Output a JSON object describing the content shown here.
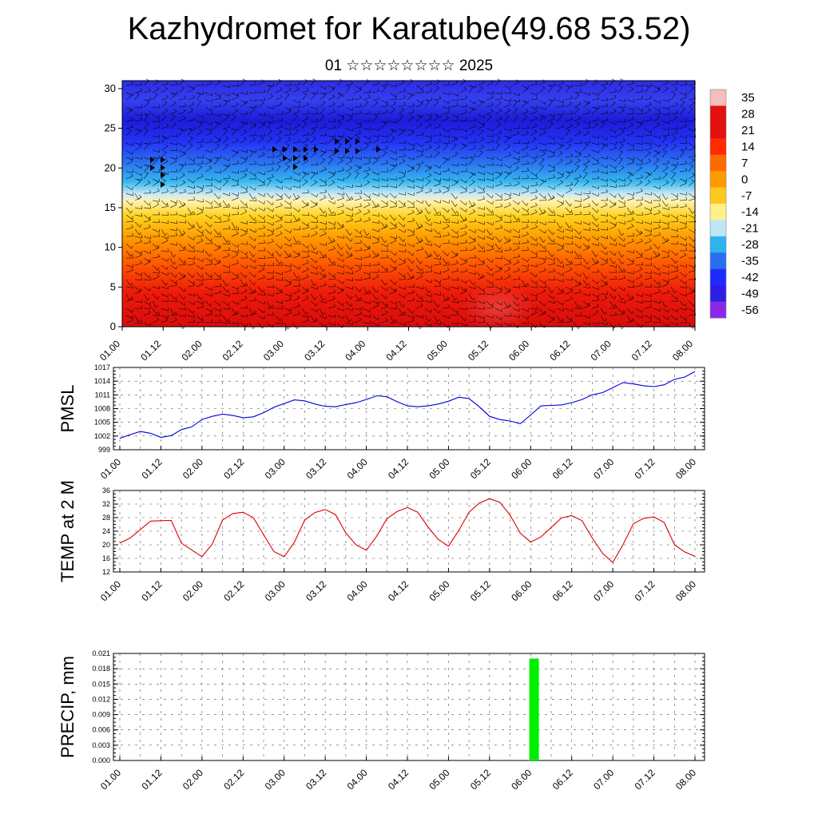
{
  "header": {
    "title": "Kazhydromet for Karatube(49.68 53.52)",
    "subtitle": "01 ☆☆☆☆☆☆☆☆ 2025"
  },
  "colors": {
    "pmsl_line": "#0000dd",
    "temp_line": "#dd0000",
    "precip_bar": "#00ee00",
    "grid": "#555555"
  },
  "chart_data": [
    {
      "type": "heatmap",
      "name": "upper-air cross-section",
      "x_ticks": [
        "01.00",
        "01.12",
        "02.00",
        "02.12",
        "03.00",
        "03.12",
        "04.00",
        "04.12",
        "05.00",
        "05.12",
        "06.00",
        "06.12",
        "07.00",
        "07.12",
        "08.00"
      ],
      "y_ticks": [
        "0",
        "5",
        "10",
        "15",
        "20",
        "25",
        "30"
      ],
      "ylim": [
        0,
        31
      ],
      "overlay": "wind barbs",
      "colorbar": {
        "labels": [
          "35",
          "28",
          "21",
          "14",
          "7",
          "0",
          "-7",
          "-14",
          "-21",
          "-28",
          "-35",
          "-42",
          "-49",
          "-56"
        ],
        "colors": [
          "#f5bdbd",
          "#e21010",
          "#e21010",
          "#ff2a00",
          "#ff6a00",
          "#ff9a00",
          "#ffc820",
          "#fff08a",
          "#bfe6f6",
          "#2db4ef",
          "#2a6ef0",
          "#1e2bff",
          "#2d1ee6",
          "#8b28e8"
        ]
      }
    },
    {
      "type": "line",
      "ylabel": "PMSL",
      "x_ticks": [
        "01.00",
        "01.12",
        "02.00",
        "02.12",
        "03.00",
        "03.12",
        "04.00",
        "04.12",
        "05.00",
        "05.12",
        "06.00",
        "06.12",
        "07.00",
        "07.12",
        "08.00"
      ],
      "y_ticks": [
        "999",
        "1002",
        "1005",
        "1008",
        "1011",
        "1014",
        "1017"
      ],
      "ylim": [
        999,
        1017
      ],
      "x": [
        0,
        3,
        6,
        9,
        12,
        15,
        18,
        21,
        24,
        27,
        30,
        33,
        36,
        39,
        42,
        45,
        48,
        51,
        54,
        57,
        60,
        63,
        66,
        69,
        72,
        75,
        78,
        81,
        84,
        87,
        90,
        93,
        96,
        99,
        102,
        105,
        108,
        111,
        114,
        117,
        120,
        123,
        126,
        129,
        132,
        135,
        138,
        141,
        144,
        147,
        150,
        153,
        156,
        159,
        162,
        165,
        168
      ],
      "values": [
        1001.5,
        1002.3,
        1003.0,
        1002.6,
        1001.7,
        1002.1,
        1003.4,
        1004.0,
        1005.6,
        1006.3,
        1006.8,
        1006.5,
        1006.0,
        1006.2,
        1007.1,
        1008.3,
        1009.1,
        1009.9,
        1009.7,
        1009.0,
        1008.5,
        1008.4,
        1008.9,
        1009.3,
        1010.0,
        1010.8,
        1010.6,
        1009.5,
        1008.6,
        1008.4,
        1008.6,
        1009.0,
        1009.6,
        1010.5,
        1010.2,
        1008.4,
        1006.3,
        1005.6,
        1005.3,
        1004.7,
        1006.6,
        1008.6,
        1008.7,
        1008.8,
        1009.3,
        1010.0,
        1011.0,
        1011.5,
        1012.6,
        1013.7,
        1013.4,
        1013.0,
        1012.8,
        1013.2,
        1014.4,
        1014.9,
        1016.1
      ]
    },
    {
      "type": "line",
      "ylabel": "TEMP at 2 M",
      "x_ticks": [
        "01.00",
        "01.12",
        "02.00",
        "02.12",
        "03.00",
        "03.12",
        "04.00",
        "04.12",
        "05.00",
        "05.12",
        "06.00",
        "06.12",
        "07.00",
        "07.12",
        "08.00"
      ],
      "y_ticks": [
        "12",
        "16",
        "20",
        "24",
        "28",
        "32",
        "36"
      ],
      "ylim": [
        12,
        36
      ],
      "x": [
        0,
        3,
        6,
        9,
        12,
        15,
        18,
        21,
        24,
        27,
        30,
        33,
        36,
        39,
        42,
        45,
        48,
        51,
        54,
        57,
        60,
        63,
        66,
        69,
        72,
        75,
        78,
        81,
        84,
        87,
        90,
        93,
        96,
        99,
        102,
        105,
        108,
        111,
        114,
        117,
        120,
        123,
        126,
        129,
        132,
        135,
        138,
        141,
        144,
        147,
        150,
        153,
        156,
        159,
        162,
        165,
        168
      ],
      "values": [
        20.5,
        22.0,
        24.5,
        27.0,
        27.1,
        27.2,
        20.5,
        18.5,
        16.5,
        20.2,
        27.3,
        29.2,
        29.6,
        28.0,
        23.0,
        18.0,
        16.5,
        20.8,
        27.3,
        29.5,
        30.4,
        28.9,
        23.5,
        20.0,
        18.4,
        22.5,
        27.7,
        29.8,
        31.0,
        29.6,
        25.3,
        21.6,
        19.6,
        24.2,
        29.6,
        32.3,
        33.6,
        32.5,
        28.7,
        23.4,
        20.8,
        22.3,
        25.1,
        27.9,
        28.6,
        27.1,
        22.0,
        17.5,
        14.8,
        20.1,
        26.2,
        27.8,
        28.2,
        26.6,
        20.0,
        17.9,
        16.6
      ]
    },
    {
      "type": "bar",
      "ylabel": "PRECIP, mm",
      "x_ticks": [
        "01.00",
        "01.12",
        "02.00",
        "02.12",
        "03.00",
        "03.12",
        "04.00",
        "04.12",
        "05.00",
        "05.12",
        "06.00",
        "06.12",
        "07.00",
        "07.12",
        "08.00"
      ],
      "y_ticks": [
        "0.000",
        "0.003",
        "0.006",
        "0.009",
        "0.012",
        "0.015",
        "0.018",
        "0.021"
      ],
      "ylim": [
        0,
        0.021
      ],
      "bars": [
        {
          "x": 121,
          "value": 0.02
        }
      ]
    }
  ]
}
